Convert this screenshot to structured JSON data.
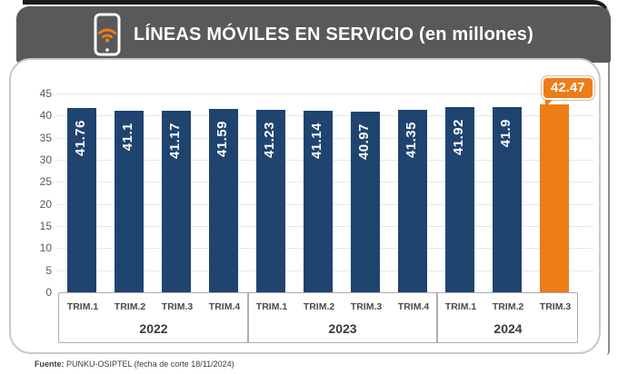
{
  "header": {
    "title": "LÍNEAS MÓVILES EN SERVICIO (en millones)",
    "icon": "smartphone-wifi-icon",
    "icon_accent": "#ED7D17",
    "banner_color": "#58595B"
  },
  "chart_data": {
    "type": "bar",
    "title": "LÍNEAS MÓVILES EN SERVICIO (en millones)",
    "ylabel": "",
    "xlabel": "",
    "ylim": [
      0,
      45
    ],
    "ytick_interval": 5,
    "yticks": [
      0,
      5,
      10,
      15,
      20,
      25,
      30,
      35,
      40,
      45
    ],
    "grid": true,
    "legend": "none",
    "groups": [
      {
        "year": "2022",
        "categories": [
          "TRIM.1",
          "TRIM.2",
          "TRIM.3",
          "TRIM.4"
        ],
        "values": [
          41.76,
          41.1,
          41.17,
          41.59
        ]
      },
      {
        "year": "2023",
        "categories": [
          "TRIM.1",
          "TRIM.2",
          "TRIM.3",
          "TRIM.4"
        ],
        "values": [
          41.23,
          41.14,
          40.97,
          41.35
        ]
      },
      {
        "year": "2024",
        "categories": [
          "TRIM.1",
          "TRIM.2",
          "TRIM.3"
        ],
        "values": [
          41.92,
          41.9,
          42.47
        ]
      }
    ],
    "highlight": {
      "group": "2024",
      "category": "TRIM.3",
      "value": 42.47,
      "label": "42.47"
    },
    "colors": {
      "bar": "#1F4470",
      "highlight": "#ED7D17",
      "value_label": "#ffffff"
    }
  },
  "footer": {
    "source_bold": "Fuente:",
    "source_rest": " PUNKU-OSIPTEL (fecha de corte 18/11/2024)"
  }
}
